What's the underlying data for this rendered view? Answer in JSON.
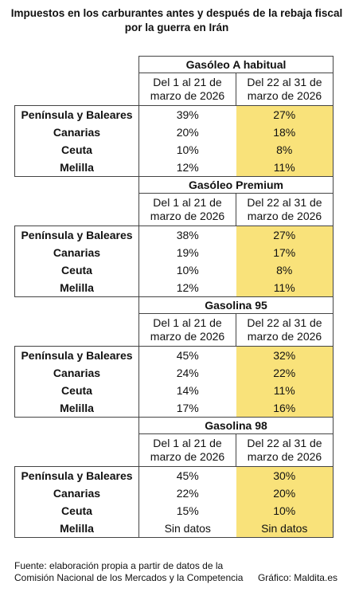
{
  "title": "Impuestos en los carburantes antes y después de la rebaja fiscal por la guerra en Irán",
  "sections": [
    {
      "name": "Gasóleo A habitual",
      "columns": [
        "Del 1 al 21 de marzo de 2026",
        "Del 22 al 31 de marzo de 2026"
      ],
      "rows": [
        {
          "region": "Península y Baleares",
          "values": [
            "39%",
            "27%"
          ]
        },
        {
          "region": "Canarias",
          "values": [
            "20%",
            "18%"
          ]
        },
        {
          "region": "Ceuta",
          "values": [
            "10%",
            "8%"
          ]
        },
        {
          "region": "Melilla",
          "values": [
            "12%",
            "11%"
          ]
        }
      ]
    },
    {
      "name": "Gasóleo Premium",
      "columns": [
        "Del 1 al 21 de marzo de 2026",
        "Del 22 al 31 de marzo de 2026"
      ],
      "rows": [
        {
          "region": "Península y Baleares",
          "values": [
            "38%",
            "27%"
          ]
        },
        {
          "region": "Canarias",
          "values": [
            "19%",
            "17%"
          ]
        },
        {
          "region": "Ceuta",
          "values": [
            "10%",
            "8%"
          ]
        },
        {
          "region": "Melilla",
          "values": [
            "12%",
            "11%"
          ]
        }
      ]
    },
    {
      "name": "Gasolina 95",
      "columns": [
        "Del 1 al 21 de marzo de 2026",
        "Del 22 al 31 de marzo de 2026"
      ],
      "rows": [
        {
          "region": "Península y Baleares",
          "values": [
            "45%",
            "32%"
          ]
        },
        {
          "region": "Canarias",
          "values": [
            "24%",
            "22%"
          ]
        },
        {
          "region": "Ceuta",
          "values": [
            "14%",
            "11%"
          ]
        },
        {
          "region": "Melilla",
          "values": [
            "17%",
            "16%"
          ]
        }
      ]
    },
    {
      "name": "Gasolina 98",
      "columns": [
        "Del 1 al 21 de marzo de 2026",
        "Del 22 al 31 de marzo de 2026"
      ],
      "rows": [
        {
          "region": "Península y Baleares",
          "values": [
            "45%",
            "30%"
          ]
        },
        {
          "region": "Canarias",
          "values": [
            "22%",
            "20%"
          ]
        },
        {
          "region": "Ceuta",
          "values": [
            "15%",
            "10%"
          ]
        },
        {
          "region": "Melilla",
          "values": [
            "Sin datos",
            "Sin datos"
          ]
        }
      ]
    }
  ],
  "footer": {
    "source": "Fuente: elaboración propia a partir de datos de la Comisión Nacional de los Mercados y la Competencia",
    "credit": "Gráfico: Maldita.es"
  }
}
